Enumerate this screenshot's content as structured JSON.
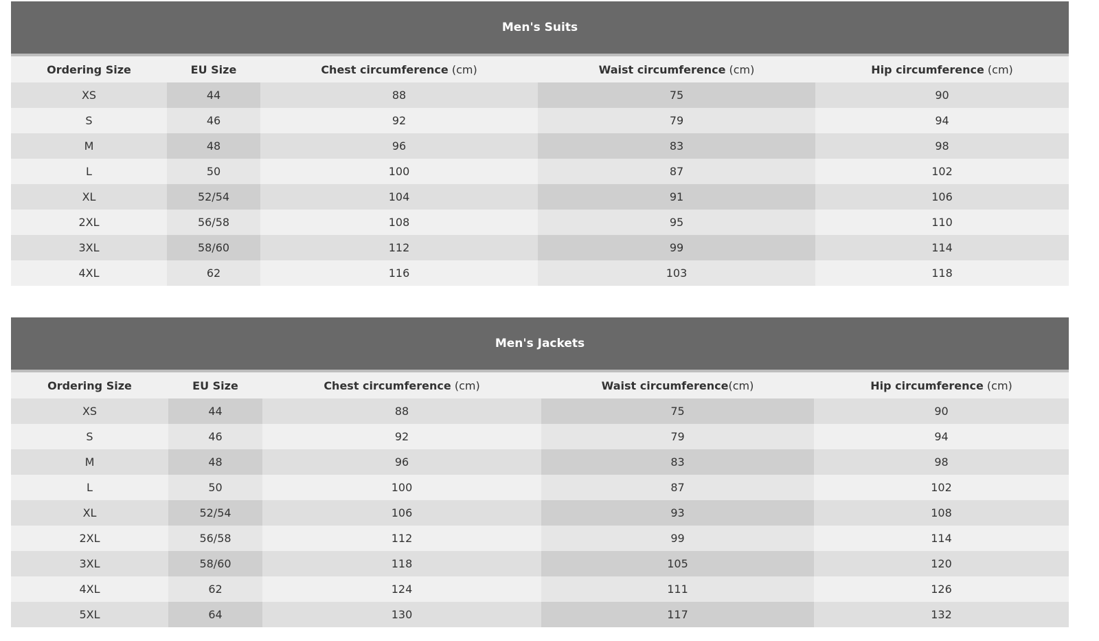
{
  "tables": [
    {
      "title": "Men's Suits",
      "headers": [
        {
          "bold": "Ordering Size",
          "unit": ""
        },
        {
          "bold": "EU Size",
          "unit": ""
        },
        {
          "bold": "Chest circumference",
          "unit": " (cm)"
        },
        {
          "bold": "Waist circumference",
          "unit": " (cm)"
        },
        {
          "bold": "Hip circumference",
          "unit": " (cm)"
        }
      ],
      "rows": [
        [
          "XS",
          "44",
          "88",
          "75",
          "90"
        ],
        [
          "S",
          "46",
          "92",
          "79",
          "94"
        ],
        [
          "M",
          "48",
          "96",
          "83",
          "98"
        ],
        [
          "L",
          "50",
          "100",
          "87",
          "102"
        ],
        [
          "XL",
          "52/54",
          "104",
          "91",
          "106"
        ],
        [
          "2XL",
          "56/58",
          "108",
          "95",
          "110"
        ],
        [
          "3XL",
          "58/60",
          "112",
          "99",
          "114"
        ],
        [
          "4XL",
          "62",
          "116",
          "103",
          "118"
        ]
      ]
    },
    {
      "title": "Men's Jackets",
      "headers": [
        {
          "bold": "Ordering Size",
          "unit": ""
        },
        {
          "bold": "EU Size",
          "unit": ""
        },
        {
          "bold": "Chest circumference",
          "unit": " (cm)"
        },
        {
          "bold": "Waist circumference",
          "unit": "(cm)"
        },
        {
          "bold": "Hip circumference",
          "unit": " (cm)"
        }
      ],
      "rows": [
        [
          "XS",
          "44",
          "88",
          "75",
          "90"
        ],
        [
          "S",
          "46",
          "92",
          "79",
          "94"
        ],
        [
          "M",
          "48",
          "96",
          "83",
          "98"
        ],
        [
          "L",
          "50",
          "100",
          "87",
          "102"
        ],
        [
          "XL",
          "52/54",
          "106",
          "93",
          "108"
        ],
        [
          "2XL",
          "56/58",
          "112",
          "99",
          "114"
        ],
        [
          "3XL",
          "58/60",
          "118",
          "105",
          "120"
        ],
        [
          "4XL",
          "62",
          "124",
          "111",
          "126"
        ],
        [
          "5XL",
          "64",
          "130",
          "117",
          "132"
        ]
      ]
    }
  ]
}
